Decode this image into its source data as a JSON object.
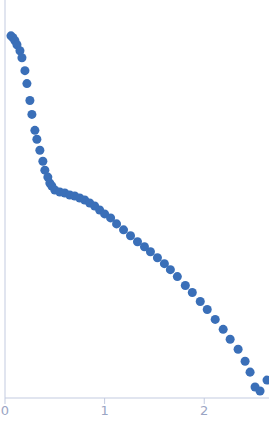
{
  "chart_data": {
    "type": "scatter",
    "x": [
      0.06,
      0.08,
      0.1,
      0.12,
      0.15,
      0.17,
      0.2,
      0.22,
      0.25,
      0.27,
      0.3,
      0.32,
      0.35,
      0.38,
      0.4,
      0.43,
      0.45,
      0.47,
      0.5,
      0.55,
      0.6,
      0.65,
      0.7,
      0.75,
      0.8,
      0.85,
      0.9,
      0.95,
      1.0,
      1.06,
      1.12,
      1.19,
      1.26,
      1.33,
      1.4,
      1.46,
      1.53,
      1.6,
      1.66,
      1.73,
      1.81,
      1.88,
      1.96,
      2.03,
      2.11,
      2.19,
      2.26,
      2.34,
      2.41,
      2.46,
      2.51,
      2.56,
      2.63
    ],
    "values": [
      3.94,
      3.92,
      3.89,
      3.85,
      3.79,
      3.72,
      3.59,
      3.46,
      3.29,
      3.15,
      2.99,
      2.9,
      2.79,
      2.68,
      2.59,
      2.52,
      2.46,
      2.43,
      2.39,
      2.37,
      2.36,
      2.34,
      2.33,
      2.31,
      2.29,
      2.26,
      2.23,
      2.19,
      2.15,
      2.11,
      2.05,
      1.99,
      1.93,
      1.87,
      1.82,
      1.77,
      1.71,
      1.65,
      1.59,
      1.52,
      1.43,
      1.36,
      1.27,
      1.19,
      1.09,
      0.99,
      0.89,
      0.79,
      0.67,
      0.56,
      0.41,
      0.37,
      0.48
    ],
    "color": "#3a6fb8",
    "xlim": [
      0,
      2.65
    ],
    "ylim": [
      0.3,
      4.3
    ],
    "xticks": [
      0,
      1,
      2
    ],
    "yticks": [
      1,
      2,
      3,
      4
    ],
    "tick_labels": "x",
    "marker": "circle"
  }
}
